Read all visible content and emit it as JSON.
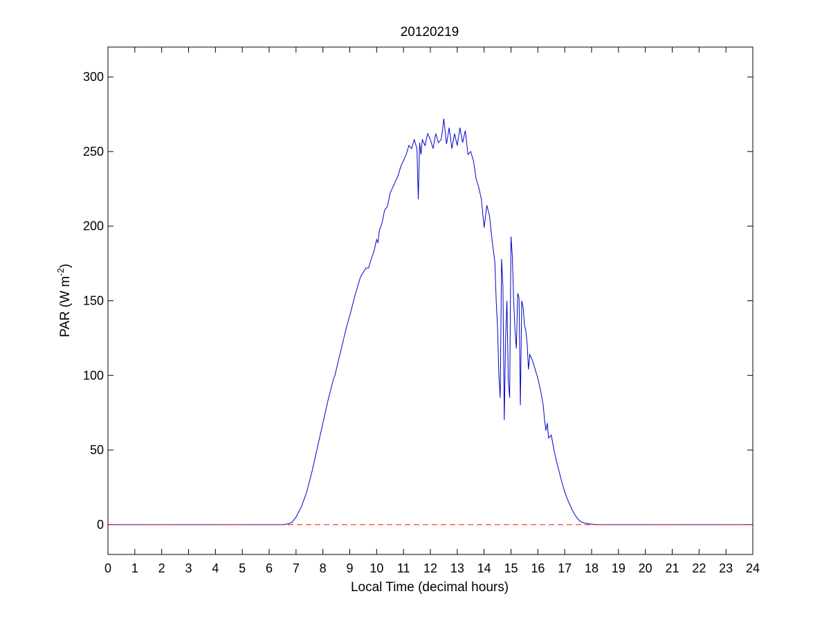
{
  "chart_data": {
    "type": "line",
    "title": "20120219",
    "xlabel": "Local Time (decimal hours)",
    "ylabel": {
      "prefix": "PAR (W m",
      "superscript": "-2",
      "suffix": ")"
    },
    "xlim": [
      0,
      24
    ],
    "ylim": [
      -20,
      320
    ],
    "xticks": [
      0,
      1,
      2,
      3,
      4,
      5,
      6,
      7,
      8,
      9,
      10,
      11,
      12,
      13,
      14,
      15,
      16,
      17,
      18,
      19,
      20,
      21,
      22,
      23,
      24
    ],
    "yticks": [
      0,
      50,
      100,
      150,
      200,
      250,
      300
    ],
    "grid": false,
    "legend": "none",
    "series": [
      {
        "color": "#0000c8",
        "style": "solid",
        "x": [
          0,
          6.5,
          6.7,
          6.85,
          7.0,
          7.2,
          7.4,
          7.6,
          7.8,
          8.0,
          8.2,
          8.4,
          8.45,
          8.5,
          8.7,
          8.9,
          9.0,
          9.2,
          9.4,
          9.6,
          9.7,
          9.8,
          9.9,
          10.0,
          10.05,
          10.1,
          10.2,
          10.3,
          10.4,
          10.5,
          10.6,
          10.7,
          10.8,
          10.9,
          11.0,
          11.1,
          11.2,
          11.3,
          11.4,
          11.5,
          11.55,
          11.6,
          11.65,
          11.7,
          11.8,
          11.9,
          12.0,
          12.1,
          12.2,
          12.3,
          12.4,
          12.45,
          12.5,
          12.6,
          12.7,
          12.8,
          12.9,
          13.0,
          13.1,
          13.2,
          13.3,
          13.4,
          13.5,
          13.6,
          13.7,
          13.8,
          13.9,
          14.0,
          14.1,
          14.2,
          14.3,
          14.4,
          14.45,
          14.5,
          14.55,
          14.6,
          14.65,
          14.7,
          14.75,
          14.8,
          14.85,
          14.9,
          14.95,
          15.0,
          15.05,
          15.1,
          15.15,
          15.2,
          15.25,
          15.3,
          15.35,
          15.4,
          15.45,
          15.5,
          15.55,
          15.6,
          15.65,
          15.7,
          15.8,
          15.9,
          16.0,
          16.1,
          16.2,
          16.25,
          16.3,
          16.35,
          16.4,
          16.5,
          16.6,
          16.7,
          16.8,
          16.9,
          17.0,
          17.1,
          17.2,
          17.3,
          17.4,
          17.5,
          17.6,
          17.7,
          17.8,
          17.9,
          18.0,
          18.1,
          18.2,
          24
        ],
        "y": [
          0,
          0,
          0.5,
          1.5,
          5,
          12,
          22,
          36,
          52,
          68,
          84,
          98,
          100,
          104,
          119,
          134,
          140,
          154,
          166,
          172,
          172,
          178,
          183,
          191,
          189,
          197,
          202,
          211,
          213,
          222,
          226,
          230,
          234,
          240,
          244,
          248,
          254,
          252,
          258,
          252,
          218,
          256,
          248,
          258,
          254,
          262,
          258,
          252,
          262,
          256,
          258,
          264,
          272,
          255,
          266,
          252,
          262,
          254,
          266,
          256,
          264,
          248,
          250,
          244,
          232,
          226,
          218,
          199,
          214,
          207,
          190,
          176,
          150,
          132,
          100,
          85,
          178,
          160,
          70,
          125,
          150,
          96,
          85,
          193,
          180,
          150,
          130,
          118,
          155,
          152,
          80,
          150,
          146,
          134,
          130,
          122,
          104,
          114,
          110,
          104,
          98,
          90,
          80,
          70,
          63,
          68,
          58,
          60,
          50,
          42,
          35,
          28,
          22,
          17,
          13,
          9,
          6,
          3.5,
          2,
          1.2,
          0.8,
          0.5,
          0.3,
          0.2,
          0,
          0
        ]
      },
      {
        "color": "#ff0000",
        "style": "dashed",
        "x": [
          0,
          24
        ],
        "y": [
          0,
          0
        ]
      }
    ]
  }
}
